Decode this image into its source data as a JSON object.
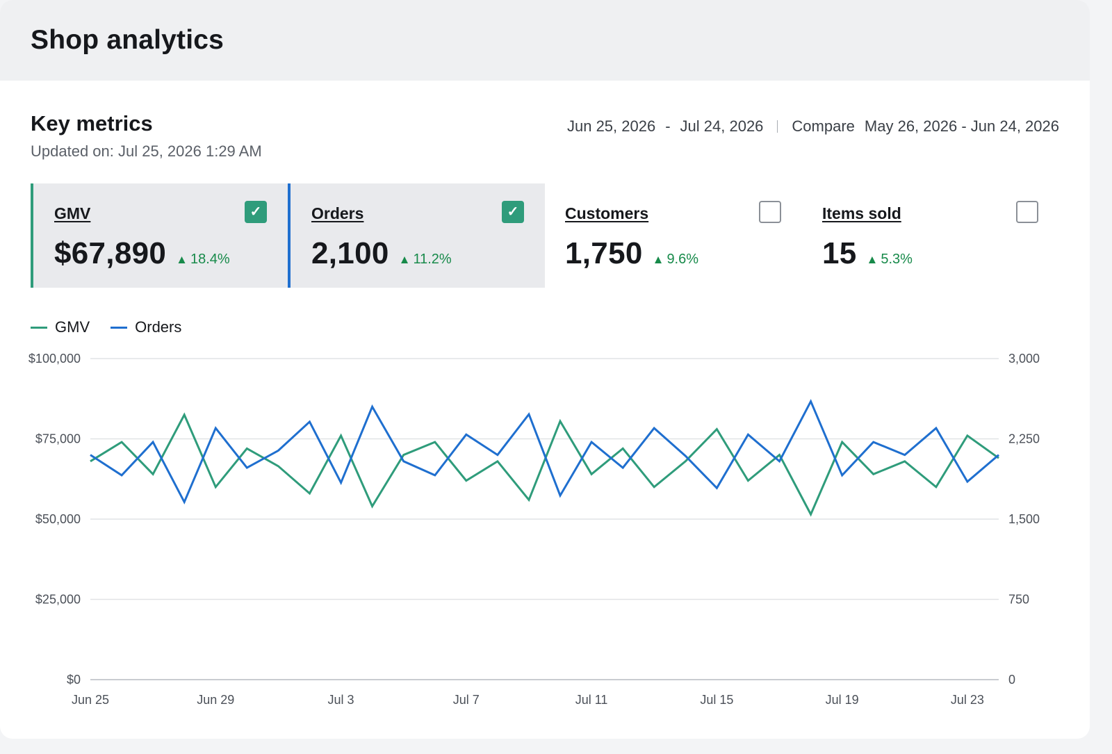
{
  "header": {
    "title": "Shop analytics"
  },
  "section": {
    "title": "Key metrics",
    "updated": "Updated on: Jul 25, 2026 1:29 AM"
  },
  "date_range": {
    "start": "Jun 25, 2026",
    "dash": "-",
    "end": "Jul 24, 2026",
    "compare_label": "Compare",
    "compare_range": "May 26, 2026 - Jun 24, 2026"
  },
  "metrics": [
    {
      "label": "GMV",
      "value": "$67,890",
      "delta": "18.4%",
      "selected": true,
      "accent": "#2f9c7b"
    },
    {
      "label": "Orders",
      "value": "2,100",
      "delta": "11.2%",
      "selected": true,
      "accent": "#1f6fcf"
    },
    {
      "label": "Customers",
      "value": "1,750",
      "delta": "9.6%",
      "selected": false
    },
    {
      "label": "Items sold",
      "value": "15",
      "delta": "5.3%",
      "selected": false
    }
  ],
  "icons": {
    "check": "checkmark-icon",
    "delta_up": "triangle-up-icon"
  },
  "colors": {
    "gmv": "#2f9c7b",
    "orders": "#1f6fcf",
    "positive": "#178a4a"
  },
  "chart_data": {
    "type": "line",
    "legend_position": "top-left",
    "grid": true,
    "x": [
      "Jun 25",
      "Jun 26",
      "Jun 27",
      "Jun 28",
      "Jun 29",
      "Jun 30",
      "Jul 1",
      "Jul 2",
      "Jul 3",
      "Jul 4",
      "Jul 5",
      "Jul 6",
      "Jul 7",
      "Jul 8",
      "Jul 9",
      "Jul 10",
      "Jul 11",
      "Jul 12",
      "Jul 13",
      "Jul 14",
      "Jul 15",
      "Jul 16",
      "Jul 17",
      "Jul 18",
      "Jul 19",
      "Jul 20",
      "Jul 21",
      "Jul 22",
      "Jul 23",
      "Jul 24"
    ],
    "x_ticks": [
      "Jun 25",
      "Jun 29",
      "Jul 3",
      "Jul 7",
      "Jul 11",
      "Jul 15",
      "Jul 19",
      "Jul 23"
    ],
    "y_left": {
      "ticks": [
        "$0",
        "$25,000",
        "$50,000",
        "$75,000",
        "$100,000"
      ],
      "range": [
        0,
        100000
      ]
    },
    "y_right": {
      "ticks": [
        "0",
        "750",
        "1,500",
        "2,250",
        "3,000"
      ],
      "range": [
        0,
        3000
      ]
    },
    "series": [
      {
        "name": "GMV",
        "axis": "left",
        "color": "#2f9c7b",
        "values": [
          68000,
          74000,
          64000,
          82500,
          60000,
          72000,
          66500,
          58000,
          76000,
          54000,
          70000,
          74000,
          62000,
          68000,
          56000,
          80500,
          64000,
          72000,
          60000,
          68000,
          78000,
          62000,
          70000,
          51500,
          74000,
          64000,
          68000,
          60000,
          76000,
          69000
        ]
      },
      {
        "name": "Orders",
        "axis": "right",
        "color": "#1f6fcf",
        "values": [
          2100,
          1910,
          2220,
          1660,
          2350,
          1980,
          2140,
          2410,
          1840,
          2550,
          2040,
          1910,
          2290,
          2100,
          2480,
          1720,
          2220,
          1980,
          2350,
          2090,
          1790,
          2290,
          2040,
          2600,
          1910,
          2220,
          2100,
          2350,
          1850,
          2100
        ]
      }
    ]
  }
}
